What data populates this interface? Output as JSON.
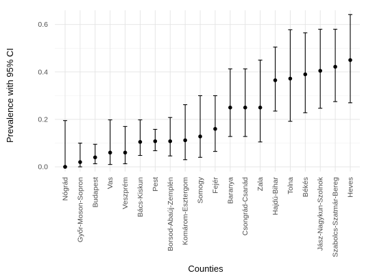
{
  "chart_data": {
    "type": "scatter",
    "xlabel": "Counties",
    "ylabel": "Prevalence with 95% CI",
    "ylim": [
      -0.02,
      0.66
    ],
    "yticks": [
      0.0,
      0.2,
      0.4,
      0.6
    ],
    "ytick_labels": [
      "0.0",
      "0.2",
      "0.4",
      "0.6"
    ],
    "grid": true,
    "legend": "none",
    "colors": {
      "point": "#000000",
      "errorbar": "#000000",
      "grid": "#e3e3e3"
    },
    "categories": [
      "Nógrád",
      "Győr-Moson-Sopron",
      "Budapest",
      "Vas",
      "Veszprém",
      "Bács-Kiskun",
      "Pest",
      "Borsod-Abaúj-Zemplén",
      "Komárom-Esztergom",
      "Somogy",
      "Fejér",
      "Baranya",
      "Csongrád-Csanád",
      "Zala",
      "Hajdú-Bihar",
      "Tolna",
      "Békés",
      "Jász-Nagykun-Szolnok",
      "Szabolcs-Szatmár-Bereg",
      "Heves"
    ],
    "values": [
      0.0,
      0.02,
      0.04,
      0.06,
      0.06,
      0.105,
      0.108,
      0.108,
      0.112,
      0.128,
      0.16,
      0.25,
      0.25,
      0.25,
      0.365,
      0.372,
      0.39,
      0.405,
      0.422,
      0.45
    ],
    "lower": [
      0.0,
      0.0,
      0.013,
      0.01,
      0.013,
      0.048,
      0.068,
      0.046,
      0.03,
      0.04,
      0.065,
      0.128,
      0.128,
      0.105,
      0.235,
      0.192,
      0.228,
      0.247,
      0.275,
      0.27
    ],
    "upper": [
      0.195,
      0.1,
      0.095,
      0.198,
      0.17,
      0.198,
      0.158,
      0.208,
      0.262,
      0.3,
      0.3,
      0.413,
      0.413,
      0.45,
      0.505,
      0.578,
      0.565,
      0.58,
      0.58,
      0.642
    ]
  }
}
